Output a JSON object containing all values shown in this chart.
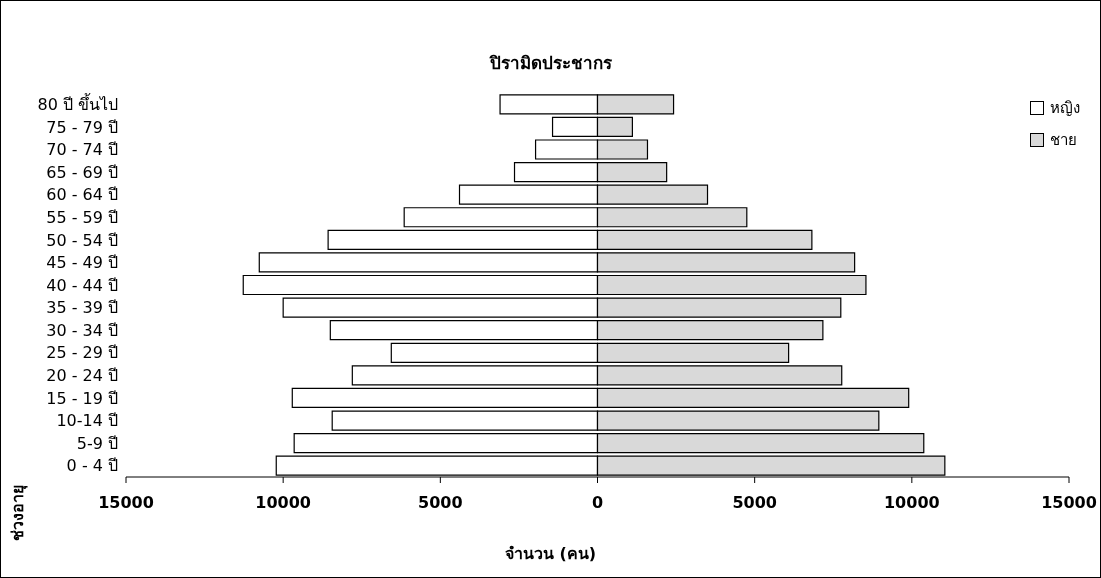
{
  "chart_data": {
    "type": "bar",
    "orientation": "horizontal",
    "stacked": true,
    "title": "ปิรามิดประชากร",
    "xlabel": "จำนวน (คน)",
    "ylabel": "ช่วงอายุ",
    "categories": [
      "80 ปี ขึ้นไป",
      "75 - 79 ปี",
      "70 - 74 ปี",
      "65 - 69 ปี",
      "60 - 64 ปี",
      "55 - 59 ปี",
      "50 - 54 ปี",
      "45 - 49 ปี",
      "40 - 44 ปี",
      "35 - 39 ปี",
      "30 - 34 ปี",
      "25 - 29 ปี",
      "20 - 24 ปี",
      "15 - 19 ปี",
      "10-14 ปี",
      "5-9 ปี",
      "0 - 4 ปี"
    ],
    "series": [
      {
        "name": "หญิง",
        "color": "#ffffff",
        "values": [
          -3100,
          -1430,
          -1970,
          -2640,
          -4390,
          -6150,
          -8570,
          -10760,
          -11270,
          -10000,
          -8500,
          -6560,
          -7800,
          -9710,
          -8440,
          -9650,
          -10220
        ]
      },
      {
        "name": "ชาย",
        "color": "#d9d9d9",
        "values": [
          2420,
          1110,
          1590,
          2200,
          3500,
          4750,
          6820,
          8180,
          8540,
          7740,
          7170,
          6080,
          7770,
          9900,
          8950,
          10380,
          11050
        ]
      }
    ],
    "xlim": [
      -15000,
      15000
    ],
    "xticks": [
      {
        "value": -15000,
        "label": "15000"
      },
      {
        "value": -10000,
        "label": "10000"
      },
      {
        "value": -5000,
        "label": "5000"
      },
      0,
      5000,
      10000,
      15000
    ],
    "grid": false,
    "legend": "top right"
  }
}
